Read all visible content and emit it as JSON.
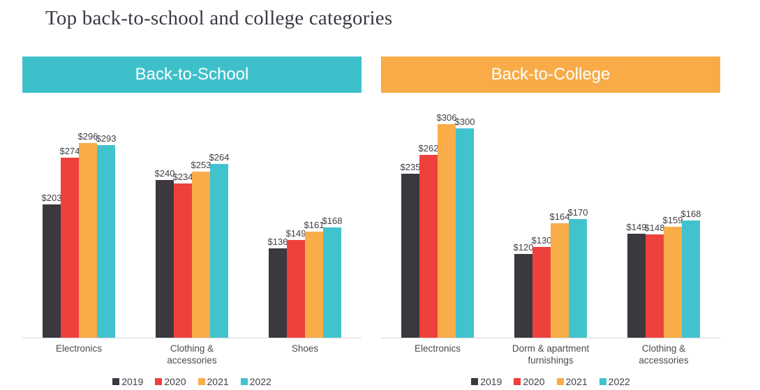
{
  "title": "Top back-to-school and college categories",
  "colors": {
    "series": {
      "2019": "#3B3840",
      "2020": "#EE403D",
      "2021": "#F9AD48",
      "2022": "#41C3CD"
    },
    "axis_line": "#D9D9D9",
    "label_text": "#3F3F46",
    "title_text": "#3A3A44"
  },
  "chart_data": [
    {
      "type": "bar",
      "title": "Back-to-School",
      "banner_color": "#3EC0CB",
      "value_prefix": "$",
      "categories": [
        "Electronics",
        "Clothing & accessories",
        "Shoes"
      ],
      "series": [
        {
          "name": "2019",
          "values": [
            203,
            240,
            136
          ]
        },
        {
          "name": "2020",
          "values": [
            274,
            234,
            149
          ]
        },
        {
          "name": "2021",
          "values": [
            296,
            253,
            161
          ]
        },
        {
          "name": "2022",
          "values": [
            293,
            264,
            168
          ]
        }
      ],
      "data_labels": true,
      "grid": false,
      "ylim": [
        0,
        350
      ],
      "legend_labels": [
        "2019",
        "2020",
        "2021",
        "2022"
      ],
      "legend_position": "bottom"
    },
    {
      "type": "bar",
      "title": "Back-to-College",
      "banner_color": "#F8AB47",
      "value_prefix": "$",
      "categories": [
        "Electronics",
        "Dorm & apartment furnishings",
        "Clothing & accessories"
      ],
      "series": [
        {
          "name": "2019",
          "values": [
            235,
            120,
            149
          ]
        },
        {
          "name": "2020",
          "values": [
            262,
            130,
            148
          ]
        },
        {
          "name": "2021",
          "values": [
            306,
            164,
            159
          ]
        },
        {
          "name": "2022",
          "values": [
            300,
            170,
            168
          ]
        }
      ],
      "data_labels": true,
      "grid": false,
      "ylim": [
        0,
        330
      ],
      "legend_labels": [
        "2019",
        "2020",
        "2021",
        "2022"
      ],
      "legend_position": "bottom"
    }
  ]
}
